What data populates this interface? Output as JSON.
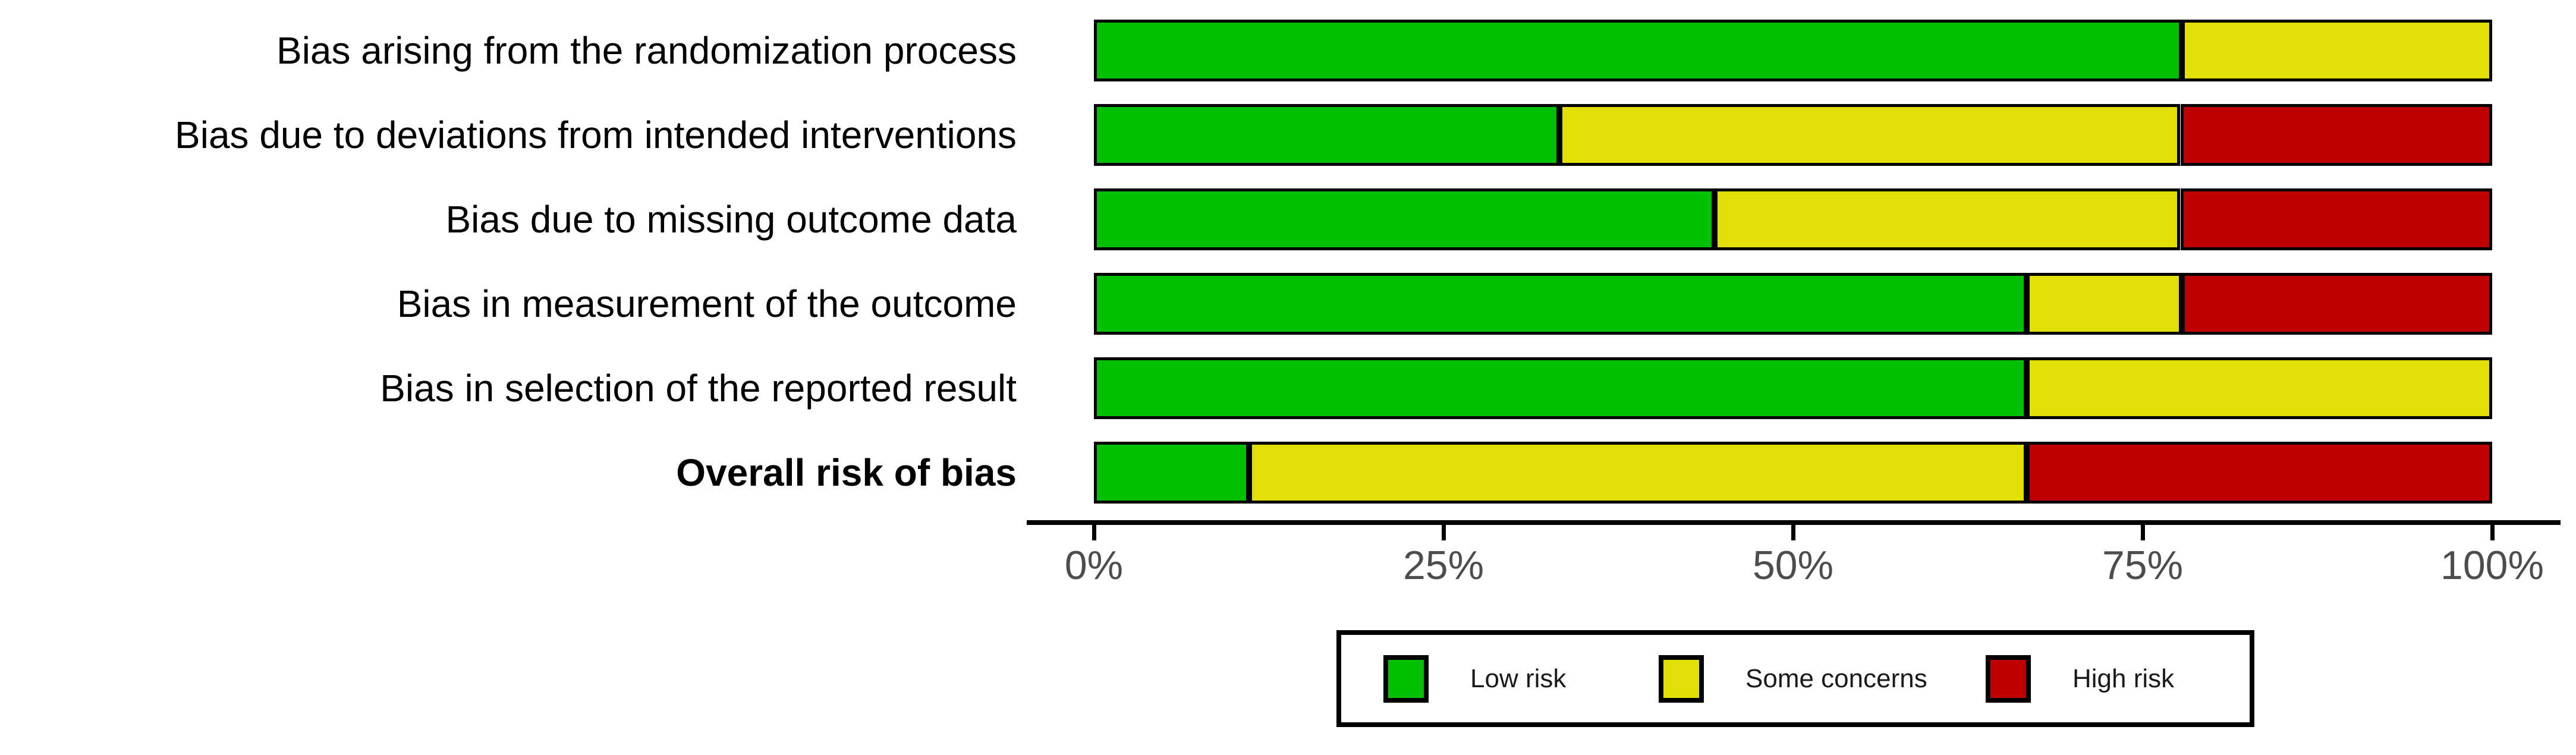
{
  "chart_data": {
    "type": "bar",
    "orientation": "horizontal_stacked",
    "title": "",
    "xlabel": "",
    "ylabel": "",
    "categories": [
      "Bias arising from the randomization process",
      "Bias due to deviations from intended interventions",
      "Bias due to missing outcome data",
      "Bias in measurement of the outcome",
      "Bias in selection of the reported result",
      "Overall risk of bias"
    ],
    "bold_category": "Overall risk of bias",
    "series": [
      {
        "name": "Low risk",
        "color": "#02C100",
        "values": [
          77.8,
          33.3,
          44.4,
          66.7,
          66.7,
          11.1
        ]
      },
      {
        "name": "Some concerns",
        "color": "#E2DF07",
        "values": [
          22.2,
          44.4,
          33.3,
          11.1,
          33.3,
          55.6
        ]
      },
      {
        "name": "High risk",
        "color": "#BF0000",
        "values": [
          0,
          22.2,
          22.2,
          22.2,
          0,
          33.3
        ]
      }
    ],
    "x_tick_labels": [
      "0%",
      "25%",
      "50%",
      "75%",
      "100%"
    ],
    "x_tick_values": [
      0,
      25,
      50,
      75,
      100
    ],
    "xlim": [
      0,
      100
    ],
    "grid": false,
    "legend": {
      "position": "bottom",
      "entries": [
        "Low risk",
        "Some concerns",
        "High risk"
      ]
    }
  },
  "colors": {
    "bar_border": "#000000",
    "axis_line": "#000000",
    "tick_label": "#4d4d4d",
    "category_label": "#000000",
    "background": "#ffffff"
  }
}
